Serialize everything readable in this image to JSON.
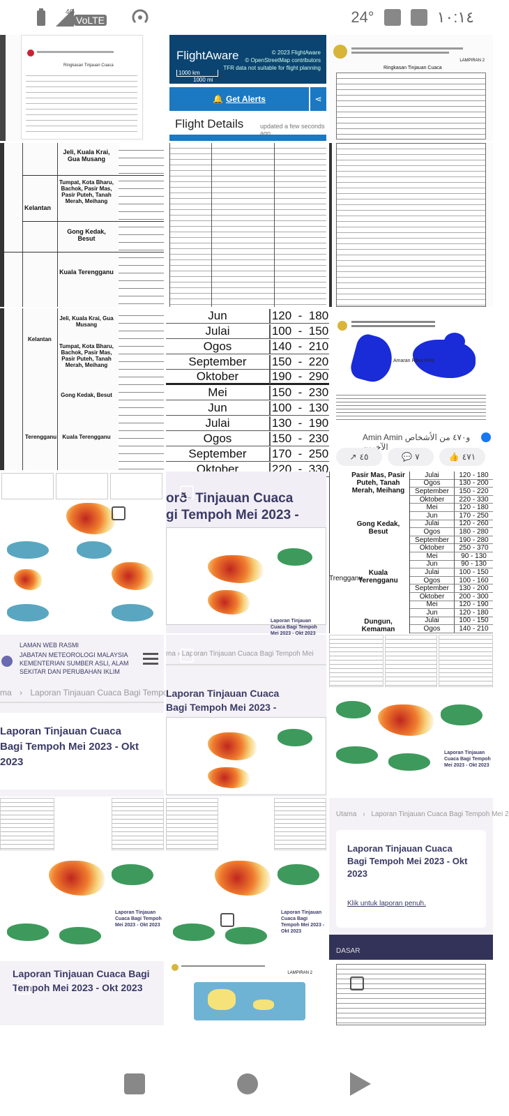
{
  "status_bar": {
    "network": "4G",
    "volte": "VoLTE",
    "temperature": "24°",
    "time": "١٠:١٤"
  },
  "tiles": {
    "flightaware": {
      "logo": "FlightAware",
      "copyright_1": "© 2023 FlightAware",
      "copyright_2": "© OpenStreetMap contributors",
      "copyright_3": "TFR data not suitable for flight planning",
      "scale_km": "1000 km",
      "scale_mi": "1000 mi",
      "alerts_label": "Get Alerts",
      "details_title": "Flight Details",
      "details_updated": "updated a few seconds ago"
    },
    "doc_table_zoom": {
      "rows": [
        {
          "month": "Jun",
          "low": "120",
          "high": "180"
        },
        {
          "month": "Julai",
          "low": "100",
          "high": "150"
        },
        {
          "month": "Ogos",
          "low": "140",
          "high": "210"
        },
        {
          "month": "September",
          "low": "150",
          "high": "220"
        },
        {
          "month": "Oktober",
          "low": "190",
          "high": "290"
        },
        {
          "month": "Mei",
          "low": "150",
          "high": "230"
        },
        {
          "month": "Jun",
          "low": "100",
          "high": "130"
        },
        {
          "month": "Julai",
          "low": "130",
          "high": "190"
        },
        {
          "month": "Ogos",
          "low": "150",
          "high": "230"
        },
        {
          "month": "September",
          "low": "170",
          "high": "250"
        },
        {
          "month": "Oktober",
          "low": "220",
          "high": "330"
        }
      ]
    },
    "facebook_post": {
      "legend_label": "Amaran Ribut Petir",
      "reactions": "Amin Amin و٤٧٠ من الأشخاص الآخرين",
      "share_count": "٤٥",
      "comment_count": "٧",
      "like_count": "٤٧١"
    },
    "tables_left": {
      "states": [
        "Kelantan",
        "Terengganu"
      ],
      "districts": [
        "Jeli, Kuala Krai, Gua Musang",
        "Tumpat, Kota Bharu, Bachok, Pasir Mas, Pasir Puteh, Tanah Merah, Meihang",
        "Gong Kedak, Besut",
        "Kuala Terengganu"
      ],
      "months": [
        "Mei",
        "Jun",
        "Julai",
        "Ogos",
        "September",
        "Oktober"
      ]
    },
    "zoom_table_right": {
      "districts": [
        "Pasir Mas, Pasir Puteh, Tanah Merah, Meihang",
        "Gong Kedak, Besut",
        "Kuala Terengganu",
        "Dungun, Kemaman"
      ],
      "state": "Trengganu",
      "rows": [
        {
          "month": "Julai",
          "low": "120",
          "high": "180"
        },
        {
          "month": "Ogos",
          "low": "130",
          "high": "200"
        },
        {
          "month": "September",
          "low": "150",
          "high": "220"
        },
        {
          "month": "Oktober",
          "low": "220",
          "high": "330"
        },
        {
          "month": "Mei",
          "low": "120",
          "high": "180"
        },
        {
          "month": "Jun",
          "low": "170",
          "high": "250"
        },
        {
          "month": "Julai",
          "low": "120",
          "high": "260"
        },
        {
          "month": "Ogos",
          "low": "180",
          "high": "280"
        },
        {
          "month": "September",
          "low": "190",
          "high": "280"
        },
        {
          "month": "Oktober",
          "low": "250",
          "high": "370"
        },
        {
          "month": "Mei",
          "low": "90",
          "high": "130"
        },
        {
          "month": "Jun",
          "low": "90",
          "high": "130"
        },
        {
          "month": "Julai",
          "low": "100",
          "high": "150"
        },
        {
          "month": "Ogos",
          "low": "100",
          "high": "160"
        },
        {
          "month": "September",
          "low": "130",
          "high": "200"
        },
        {
          "month": "Oktober",
          "low": "200",
          "high": "300"
        },
        {
          "month": "Mei",
          "low": "120",
          "high": "190"
        },
        {
          "month": "Jun",
          "low": "120",
          "high": "180"
        },
        {
          "month": "Julai",
          "low": "100",
          "high": "150"
        },
        {
          "month": "Ogos",
          "low": "140",
          "high": "210"
        }
      ]
    },
    "met_site": {
      "title_line_1": "LAMAN WEB RASMI",
      "title_line_2": "JABATAN METEOROLOGI MALAYSIA",
      "title_line_3": "KEMENTERIAN SUMBER ASLI, ALAM",
      "title_line_4": "SEKITAR DAN PERUBAHAN IKLIM",
      "crumb_home": "ma",
      "crumb_page": "Laporan Tinjauan Cuaca Bagi Tempoh Me",
      "heading": "Laporan Tinjauan Cuaca Bagi Tempoh Mei 2023 - Okt 2023"
    },
    "report_heading_a": "orð- Tinjauan Cuaca",
    "report_heading_b": "gi Tempoh Mei 2023 -",
    "report_thumb_caption": "Laporan Tinjauan Cuaca Bagi Tempoh Mei 2023 - Okt 2023",
    "crumb_mid": "ma  ›  Laporan Tinjauan Cuaca Bagi Tempoh Mei",
    "mid_heading_1": "Laporan Tinjauan Cuaca",
    "mid_heading_2": "Bagi Tempoh Mei 2023 -",
    "right_card": {
      "crumb_home": "Utama",
      "crumb_page": "Laporan Tinjauan Cuaca Bagi Tempoh Mei 2",
      "heading": "Laporan Tinjauan Cuaca Bagi Tempoh Mei 2023 - Okt 2023",
      "link": "Klik untuk laporan penuh.",
      "footer": "DASAR"
    },
    "bottom_left_heading": "Laporan Tinjauan Cuaca Bagi Tempoh Mei 2023 - Okt 2023",
    "lampiran": "LAMPIRAN 2",
    "doc_caption": "Ringkasan Tinjauan Cuaca"
  }
}
